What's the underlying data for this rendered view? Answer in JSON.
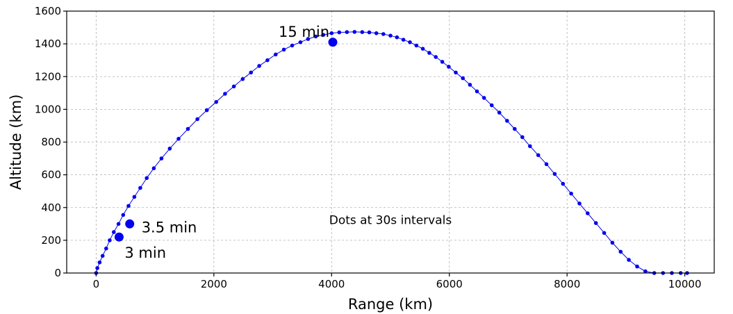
{
  "chart_data": {
    "type": "scatter",
    "title": "",
    "xlabel": "Range (km)",
    "ylabel": "Altitude (km)",
    "xlim": [
      -500,
      10500
    ],
    "ylim": [
      0,
      1600
    ],
    "xticks": [
      "0",
      "2000",
      "4000",
      "6000",
      "8000",
      "10000"
    ],
    "yticks": [
      "0",
      "200",
      "400",
      "600",
      "800",
      "1000",
      "1200",
      "1400",
      "1600"
    ],
    "grid": true,
    "legend": "none",
    "colors": {
      "series": "#0000ee"
    },
    "series": [
      {
        "x": [
          0,
          20,
          60,
          110,
          170,
          230,
          300,
          380,
          460,
          550,
          650,
          750,
          860,
          980,
          1110,
          1250,
          1400,
          1560,
          1720,
          1880,
          2040,
          2190,
          2340,
          2490,
          2630,
          2770,
          2910,
          3050,
          3190,
          3330,
          3470,
          3600,
          3730,
          3860,
          4000,
          4130,
          4260,
          4390,
          4520,
          4640,
          4760,
          4880,
          5000,
          5110,
          5220,
          5330,
          5440,
          5550,
          5660,
          5770,
          5880,
          5990,
          6110,
          6230,
          6350,
          6470,
          6590,
          6720,
          6850,
          6980,
          7110,
          7240,
          7370,
          7510,
          7650,
          7790,
          7930,
          8070,
          8210,
          8350,
          8490,
          8630,
          8770,
          8910,
          9050,
          9190,
          9330,
          9480,
          9630,
          9780,
          9930,
          10040
        ],
        "y": [
          0,
          30,
          65,
          105,
          150,
          200,
          250,
          300,
          355,
          410,
          465,
          520,
          580,
          640,
          700,
          760,
          820,
          880,
          940,
          995,
          1045,
          1095,
          1140,
          1185,
          1225,
          1265,
          1300,
          1335,
          1365,
          1390,
          1410,
          1430,
          1445,
          1455,
          1465,
          1470,
          1472,
          1473,
          1472,
          1470,
          1465,
          1460,
          1450,
          1440,
          1425,
          1410,
          1390,
          1370,
          1345,
          1320,
          1290,
          1260,
          1225,
          1190,
          1150,
          1110,
          1070,
          1025,
          980,
          930,
          880,
          830,
          775,
          720,
          665,
          605,
          545,
          485,
          425,
          365,
          305,
          245,
          185,
          130,
          80,
          40,
          10,
          0,
          0,
          0,
          0,
          0
        ]
      }
    ],
    "highlights": [
      {
        "label": "3 min",
        "x": 390,
        "y": 220
      },
      {
        "label": "3.5 min",
        "x": 570,
        "y": 300
      },
      {
        "label": "15 min",
        "x": 4020,
        "y": 1410
      }
    ],
    "annotation": "Dots at 30s intervals"
  }
}
